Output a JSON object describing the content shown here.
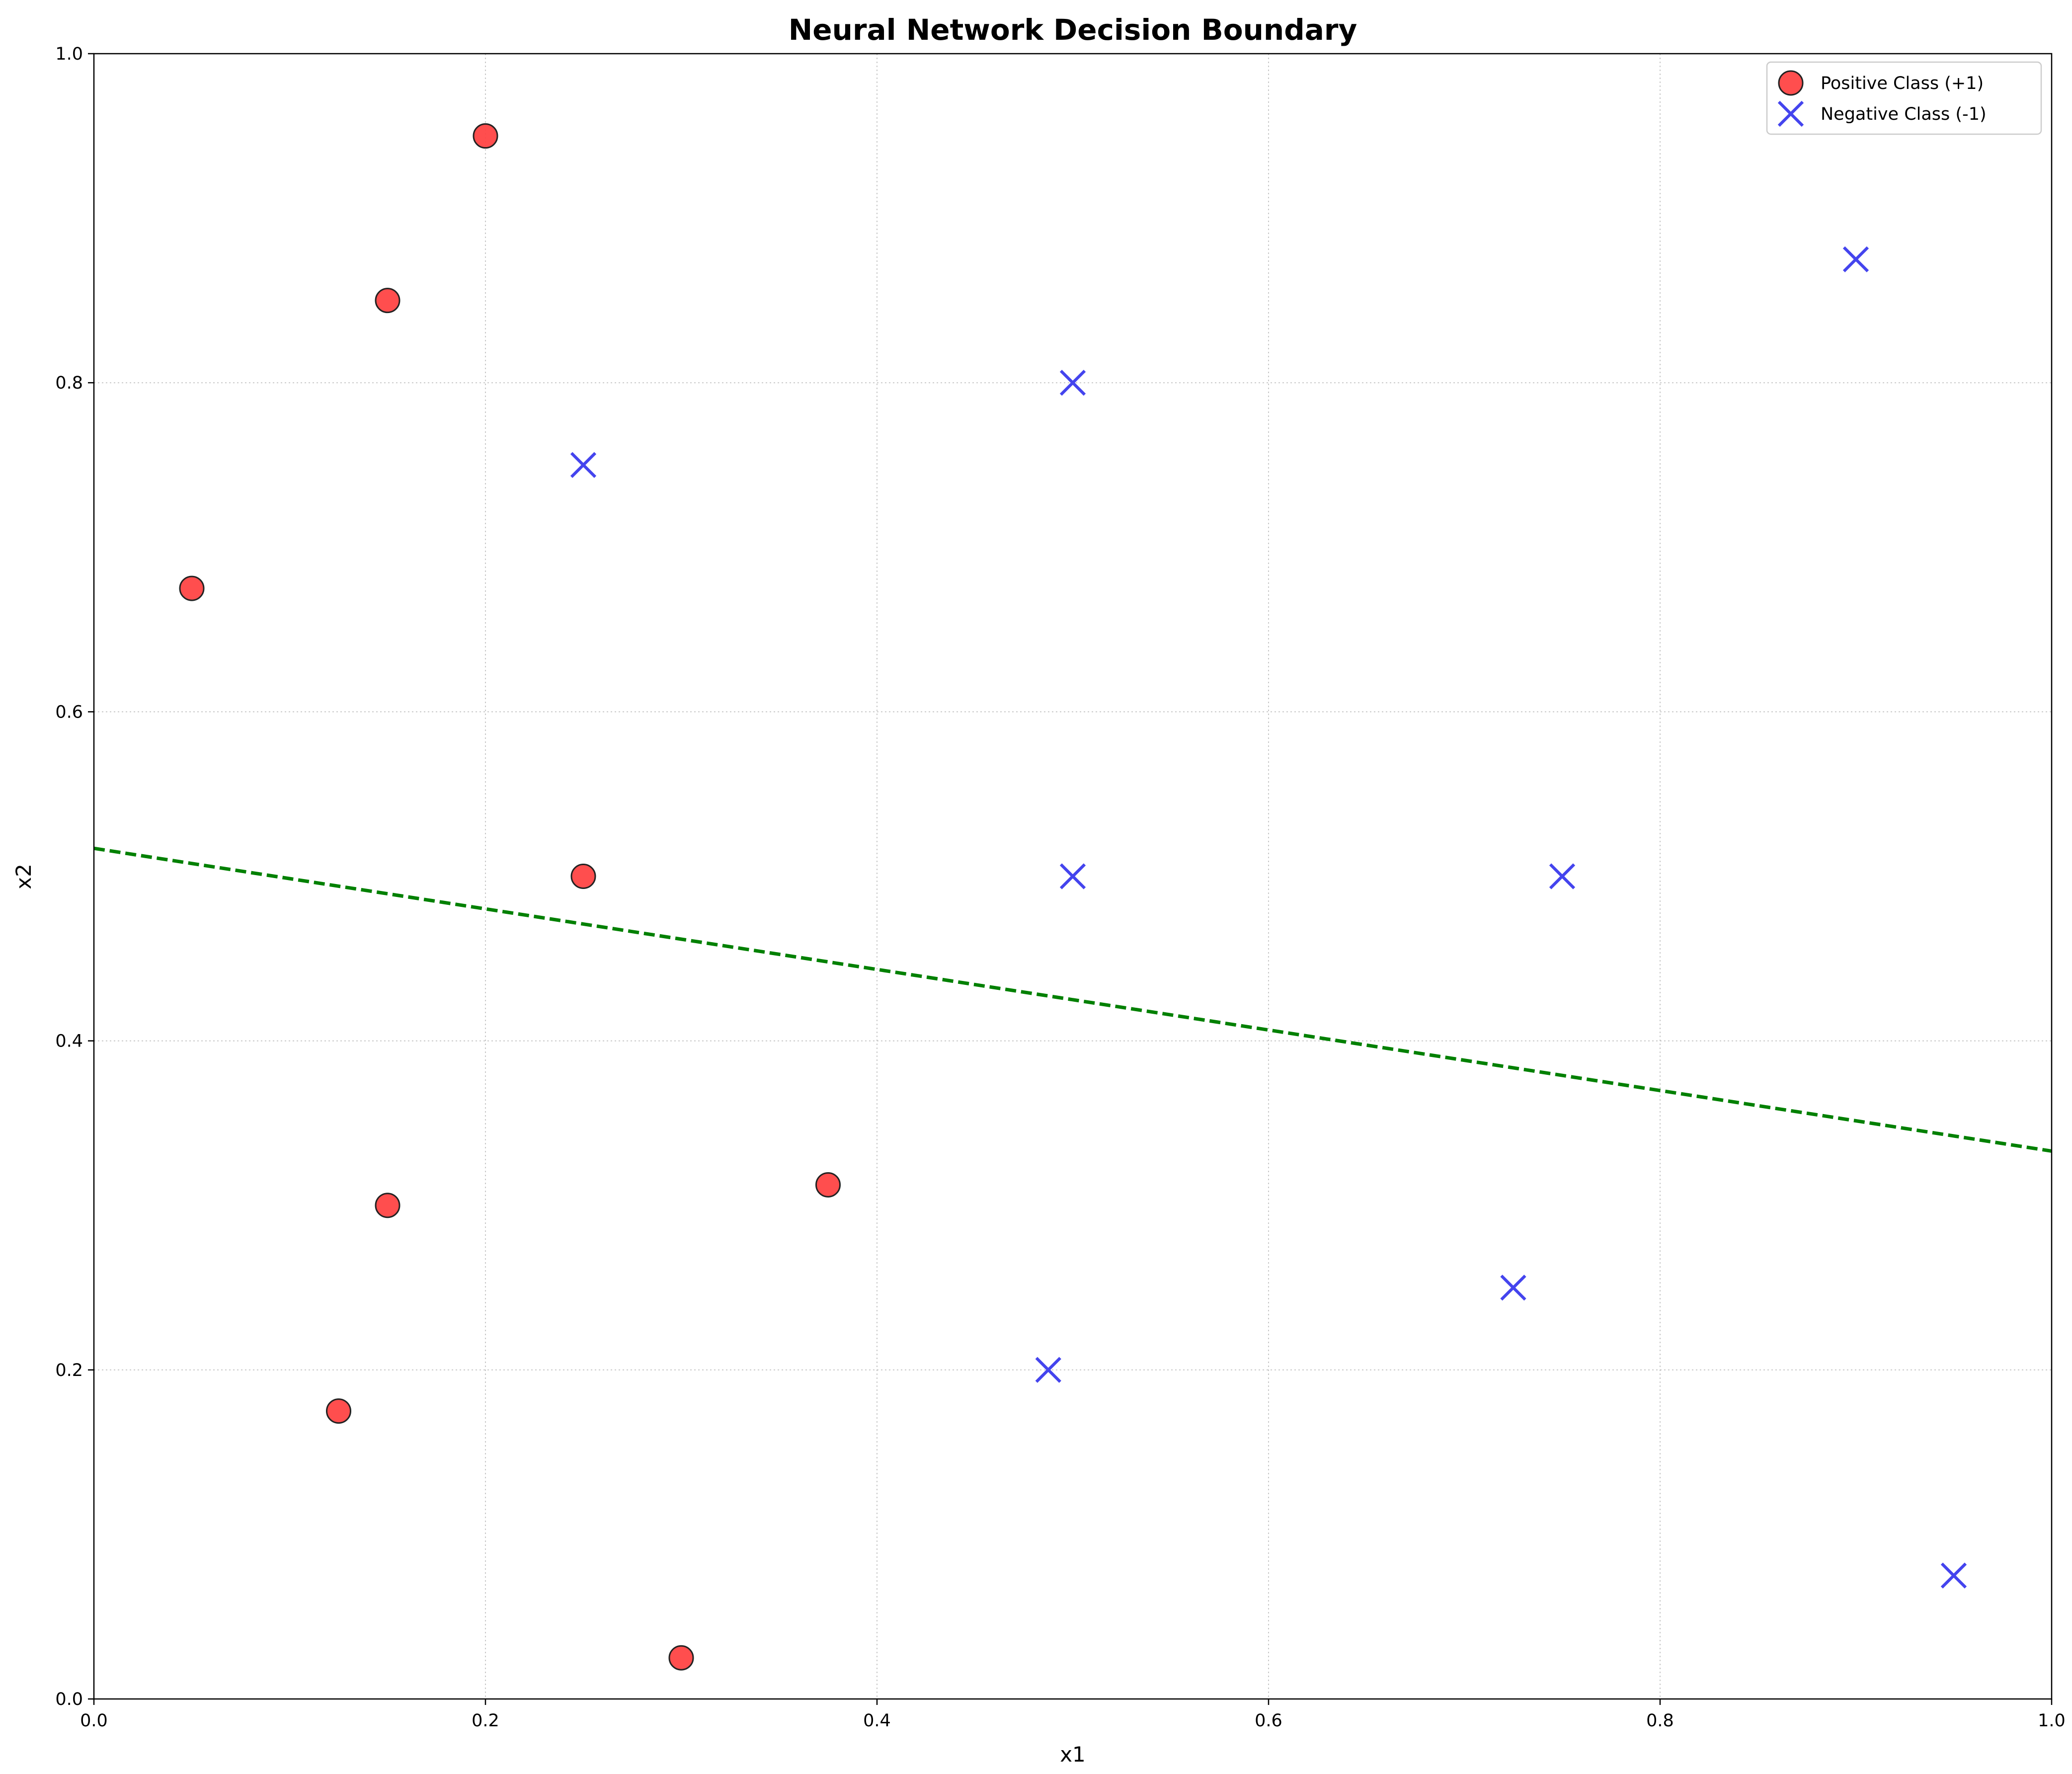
{
  "chart_data": {
    "type": "scatter",
    "title": "Neural Network Decision Boundary",
    "xlabel": "x1",
    "ylabel": "x2",
    "xlim": [
      0.0,
      1.0
    ],
    "ylim": [
      0.0,
      1.0
    ],
    "x_ticks": [
      "0.0",
      "0.2",
      "0.4",
      "0.6",
      "0.8",
      "1.0"
    ],
    "y_ticks": [
      "0.0",
      "0.2",
      "0.4",
      "0.6",
      "0.8",
      "1.0"
    ],
    "grid": true,
    "legend_position": "top-right",
    "series": [
      {
        "name": "Positive Class (+1)",
        "marker": "circle",
        "color": "#ff4444",
        "edge_color": "#222222",
        "points": [
          {
            "x": 0.05,
            "y": 0.675
          },
          {
            "x": 0.15,
            "y": 0.85
          },
          {
            "x": 0.2,
            "y": 0.95
          },
          {
            "x": 0.25,
            "y": 0.5
          },
          {
            "x": 0.15,
            "y": 0.3
          },
          {
            "x": 0.125,
            "y": 0.175
          },
          {
            "x": 0.375,
            "y": 0.3125
          },
          {
            "x": 0.3,
            "y": 0.025
          }
        ]
      },
      {
        "name": "Negative Class (-1)",
        "marker": "x",
        "color": "#4444ee",
        "points": [
          {
            "x": 0.25,
            "y": 0.75
          },
          {
            "x": 0.5,
            "y": 0.8
          },
          {
            "x": 0.9,
            "y": 0.875
          },
          {
            "x": 0.5,
            "y": 0.5
          },
          {
            "x": 0.75,
            "y": 0.5
          },
          {
            "x": 0.4875,
            "y": 0.2
          },
          {
            "x": 0.725,
            "y": 0.25
          },
          {
            "x": 0.95,
            "y": 0.075
          }
        ]
      }
    ],
    "decision_boundary": {
      "style": "dashed",
      "color": "#008000",
      "points": [
        {
          "x": 0.0,
          "y": 0.517
        },
        {
          "x": 1.0,
          "y": 0.333
        }
      ]
    }
  }
}
